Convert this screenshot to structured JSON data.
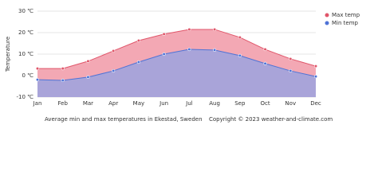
{
  "chart_data": {
    "type": "area",
    "title": "Average min and max temperatures in Ekestad, Sweden",
    "copyright": "Copyright © 2023  weather-and-climate.com",
    "ylabel": "Temperature",
    "categories": [
      "Jan",
      "Feb",
      "Mar",
      "Apr",
      "May",
      "Jun",
      "Jul",
      "Aug",
      "Sep",
      "Oct",
      "Nov",
      "Dec"
    ],
    "series": [
      {
        "name": "Max temp",
        "color": "#e0566a",
        "fill_color": "#f3a8b4",
        "values": [
          3.3,
          3.3,
          6.7,
          11.5,
          16.3,
          19.3,
          21.5,
          21.5,
          17.8,
          12.2,
          7.8,
          4.4
        ]
      },
      {
        "name": "Min temp",
        "color": "#4f73d6",
        "fill_color": "#a9a4d9",
        "values": [
          -1.9,
          -2.2,
          -0.7,
          2.2,
          6.3,
          10,
          12.2,
          11.9,
          9.3,
          5.6,
          2.2,
          -0.4
        ]
      }
    ],
    "ylim": [
      -10,
      30
    ],
    "yticks": [
      {
        "value": -10,
        "label": "-10 ℃"
      },
      {
        "value": 0,
        "label": "0 ℃"
      },
      {
        "value": 10,
        "label": "10 ℃"
      },
      {
        "value": 20,
        "label": "20 ℃"
      },
      {
        "value": 30,
        "label": "30 ℃"
      }
    ],
    "grid": true,
    "legend": "top-right"
  }
}
